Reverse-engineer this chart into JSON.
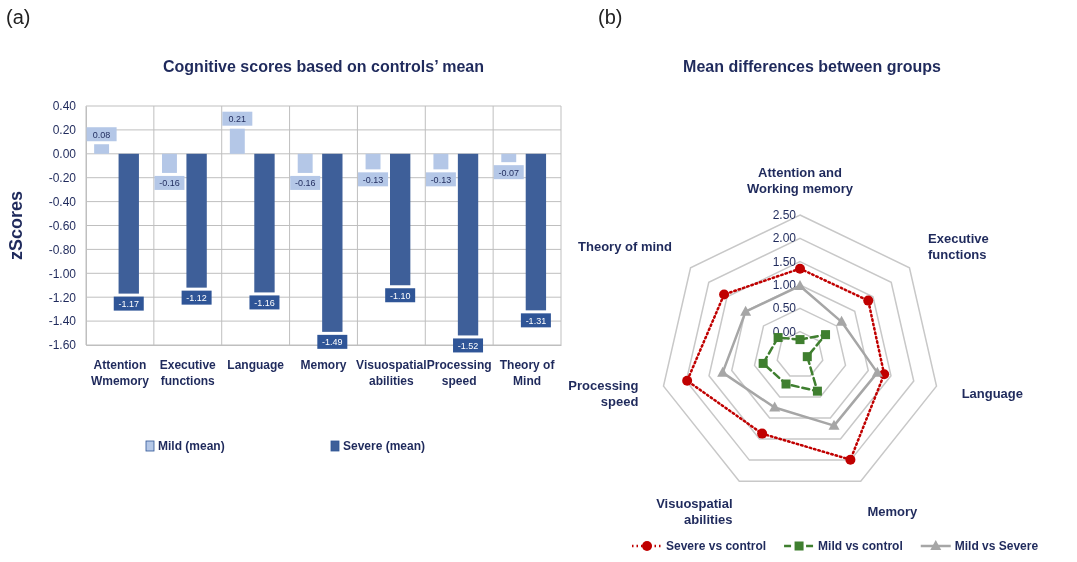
{
  "chart_data": [
    {
      "type": "bar",
      "title": "Cognitive scores based on controls’ mean",
      "ylabel": "zScores",
      "annotations": [
        "(a)"
      ],
      "categories": [
        "Attention Wmemory",
        "Executive functions",
        "Language",
        "Memory",
        "Visuospatial abilities",
        "Processing speed",
        "Theory of Mind"
      ],
      "series": [
        {
          "name": "Mild (mean)",
          "color": "#b4c7e7",
          "values": [
            0.08,
            -0.16,
            0.21,
            -0.16,
            -0.13,
            -0.13,
            -0.07
          ],
          "value_labels": [
            "0.08",
            "-0.16",
            "0.21",
            "-0.16",
            "-0.13",
            "-0.13",
            "-0.07"
          ]
        },
        {
          "name": "Severe (mean)",
          "color": "#3e5f99",
          "values": [
            -1.17,
            -1.12,
            -1.16,
            -1.49,
            -1.1,
            -1.52,
            -1.31
          ],
          "value_labels": [
            "-1.17",
            "-1.12",
            "-1.16",
            "-1.49",
            "-1.10",
            "-1.52",
            "-1.31"
          ]
        }
      ],
      "ylim": [
        -1.6,
        0.4
      ],
      "yticks": [
        {
          "value": 0.4,
          "label": "0.40"
        },
        {
          "value": 0.2,
          "label": "0.20"
        },
        {
          "value": 0,
          "label": "0.00"
        },
        {
          "value": -0.2,
          "label": "-0.20"
        },
        {
          "value": -0.4,
          "label": "-0.40"
        },
        {
          "value": -0.6,
          "label": "-0.60"
        },
        {
          "value": -0.8,
          "label": "-0.80"
        },
        {
          "value": -1,
          "label": "-1.00"
        },
        {
          "value": -1.2,
          "label": "-1.20"
        },
        {
          "value": -1.4,
          "label": "-1.40"
        },
        {
          "value": -1.6,
          "label": "-1.60"
        }
      ],
      "grid": true,
      "legend": "bottom"
    },
    {
      "type": "radar",
      "title": "Mean differences between groups",
      "annotations": [
        "(b)"
      ],
      "categories": [
        "Attention and Working memory",
        "Executive functions",
        "Language",
        "Memory",
        "Visuospatial abilities",
        "Processing speed",
        "Theory of mind"
      ],
      "series": [
        {
          "name": "Severe vs control",
          "color": "#c00000",
          "line_style": "dotted",
          "marker": "circle",
          "values": [
            1.35,
            1.37,
            1.35,
            1.99,
            1.37,
            1.98,
            1.58
          ]
        },
        {
          "name": "Mild vs control",
          "color": "#3f7f2f",
          "line_style": "dashed",
          "marker": "square",
          "values": [
            -0.17,
            0.2,
            -0.34,
            0.36,
            0.19,
            0.31,
            0.1
          ]
        },
        {
          "name": "Mild vs Severe",
          "color": "#a6a6a6",
          "line_style": "solid",
          "marker": "triangle",
          "values": [
            0.98,
            0.64,
            1.2,
            1.18,
            0.75,
            1.2,
            0.99
          ]
        }
      ],
      "ylim": [
        -0.5,
        2.5
      ],
      "yticks": [
        {
          "value": 0,
          "label": "0.00"
        },
        {
          "value": 0.5,
          "label": "0.50"
        },
        {
          "value": 1,
          "label": "1.00"
        },
        {
          "value": 1.5,
          "label": "1.50"
        },
        {
          "value": 2,
          "label": "2.00"
        },
        {
          "value": 2.5,
          "label": "2.50"
        }
      ],
      "legend": "bottom"
    }
  ]
}
